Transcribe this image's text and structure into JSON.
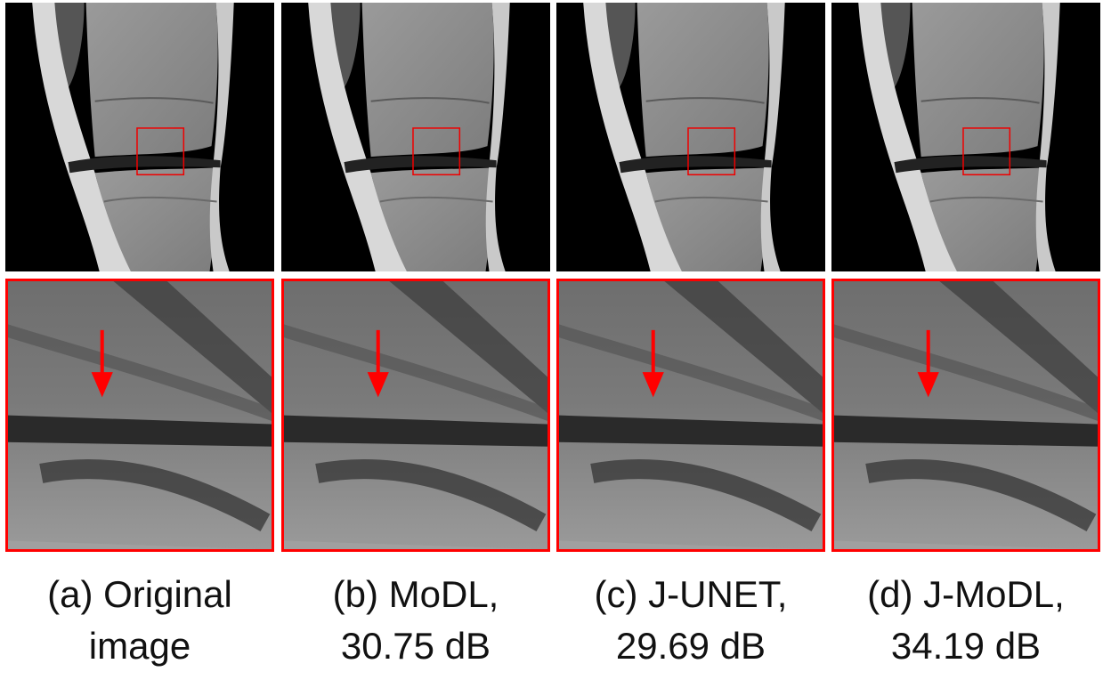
{
  "panels": [
    {
      "caption": [
        "(a) Original",
        "image"
      ]
    },
    {
      "caption": [
        "(b) MoDL,",
        "30.75 dB"
      ]
    },
    {
      "caption": [
        "(c) J-UNET,",
        "29.69 dB"
      ]
    },
    {
      "caption": [
        "(d) J-MoDL,",
        "34.19 dB"
      ]
    }
  ]
}
